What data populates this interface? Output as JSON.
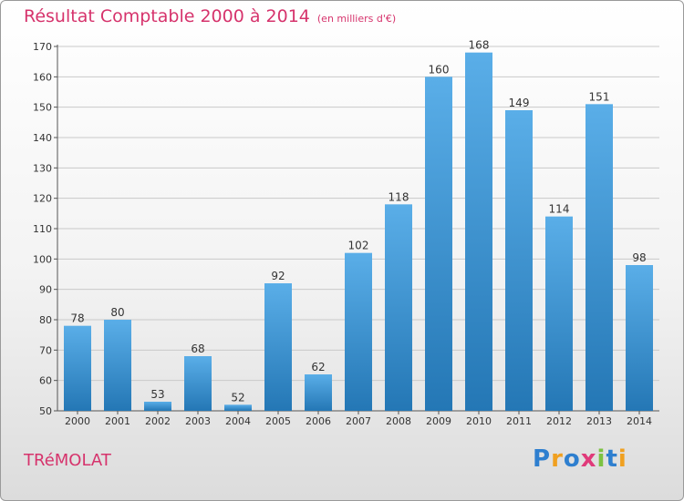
{
  "header": {
    "title": "Résultat Comptable 2000 à 2014",
    "unit": "(en milliers d'€)"
  },
  "footer": {
    "commune": "TRéMOLAT",
    "logo": [
      {
        "ch": "P",
        "color": "#2e7fcf"
      },
      {
        "ch": "r",
        "color": "#f0a020"
      },
      {
        "ch": "o",
        "color": "#2e7fcf"
      },
      {
        "ch": "x",
        "color": "#e03a7a"
      },
      {
        "ch": "i",
        "color": "#7cc242"
      },
      {
        "ch": "t",
        "color": "#2e7fcf"
      },
      {
        "ch": "i",
        "color": "#f0a020"
      }
    ]
  },
  "colors": {
    "bar_top": "#5aaee8",
    "bar_bottom": "#2477b5",
    "title": "#d6336c"
  },
  "chart_data": {
    "type": "bar",
    "title": "Résultat Comptable 2000 à 2014",
    "subtitle": "(en milliers d'€)",
    "categories": [
      "2000",
      "2001",
      "2002",
      "2003",
      "2004",
      "2005",
      "2006",
      "2007",
      "2008",
      "2009",
      "2010",
      "2011",
      "2012",
      "2013",
      "2014"
    ],
    "values": [
      78,
      80,
      53,
      68,
      52,
      92,
      62,
      102,
      118,
      160,
      168,
      149,
      114,
      151,
      98
    ],
    "ylim": [
      50,
      170
    ],
    "yticks": [
      50,
      60,
      70,
      80,
      90,
      100,
      110,
      120,
      130,
      140,
      150,
      160,
      170
    ],
    "grid": true,
    "legend": "none"
  }
}
